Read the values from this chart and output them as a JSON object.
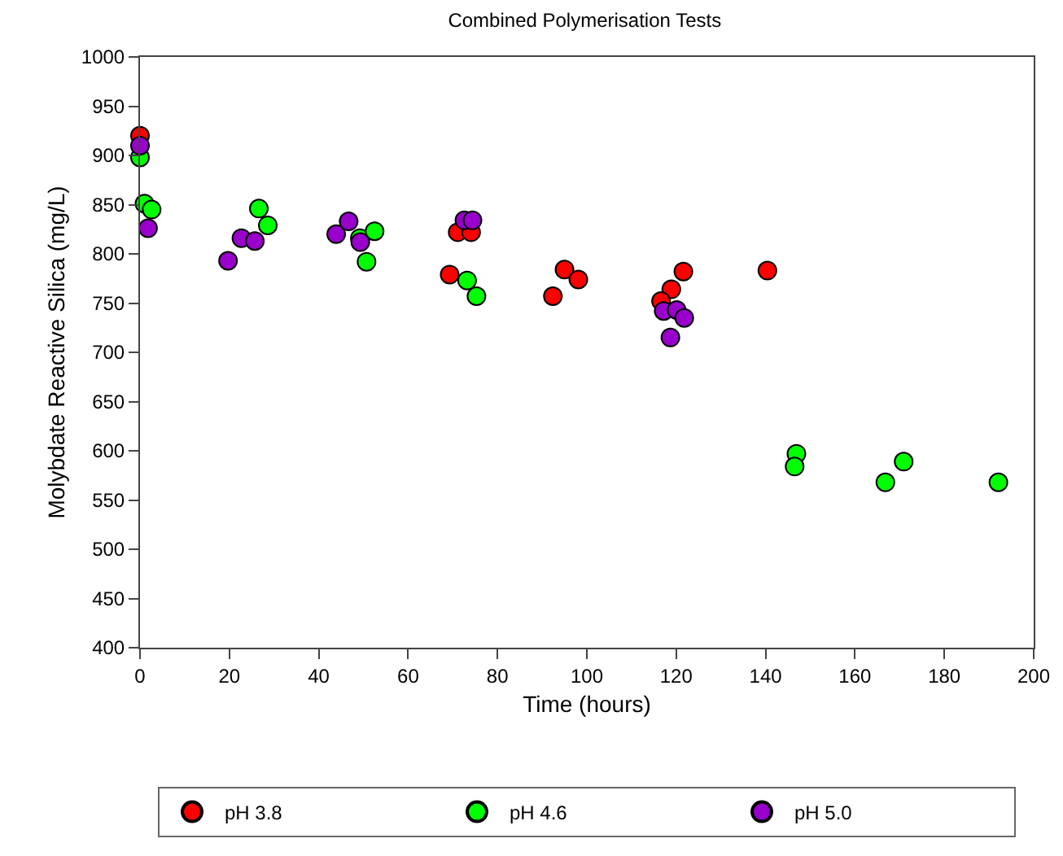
{
  "chart_data": {
    "type": "scatter",
    "title": "Combined Polymerisation Tests",
    "xlabel": "Time (hours)",
    "ylabel": "Molybdate Reactive Silica (mg/L)",
    "xlim": [
      0,
      200
    ],
    "xticks": [
      0,
      20,
      40,
      60,
      80,
      100,
      120,
      140,
      160,
      180,
      200
    ],
    "ylim": [
      400,
      1000
    ],
    "yticks": [
      400,
      450,
      500,
      550,
      600,
      650,
      700,
      750,
      800,
      850,
      900,
      950,
      1000
    ],
    "grid": false,
    "legend": "bottom",
    "marker": "circle",
    "series": [
      {
        "name": "pH 3.8",
        "color": "#ff0000",
        "x": [
          0,
          71.1,
          74.1,
          69.3,
          95,
          98.1,
          92.4,
          121.6,
          118.9,
          116.6,
          140.4
        ],
        "values": [
          920,
          822,
          822,
          779,
          784,
          774,
          757,
          782,
          764,
          752,
          783
        ]
      },
      {
        "name": "pH 4.6",
        "color": "#00ff00",
        "x": [
          0,
          1,
          2.6,
          26.6,
          28.6,
          49.2,
          50.7,
          52.5,
          73.2,
          75.3,
          146.9,
          146.5,
          166.8,
          170.9,
          192.1
        ],
        "values": [
          898,
          851,
          845,
          846,
          829,
          816,
          792,
          823,
          773,
          757,
          597,
          584,
          568,
          589,
          568
        ]
      },
      {
        "name": "pH 5.0",
        "color": "#9900cc",
        "x": [
          0,
          1.8,
          19.7,
          22.7,
          25.7,
          43.9,
          46.7,
          49.3,
          72.6,
          74.4,
          117.2,
          120.1,
          121.8,
          118.7
        ],
        "values": [
          910,
          826,
          793,
          816,
          813,
          820,
          833,
          812,
          834,
          834,
          742,
          743,
          735,
          715
        ]
      }
    ]
  }
}
